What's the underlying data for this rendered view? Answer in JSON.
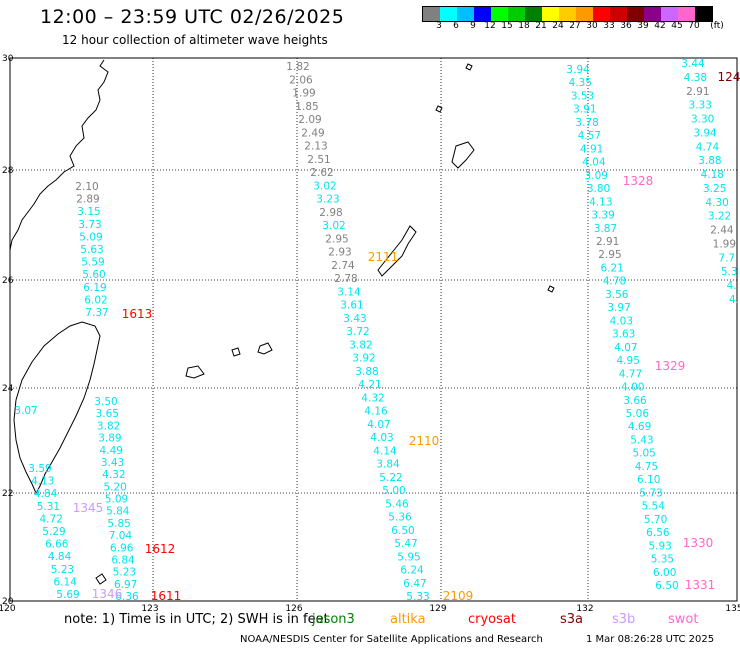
{
  "title": "12:00 – 23:59 UTC 02/26/2025",
  "subtitle": "12 hour collection of altimeter wave heights",
  "legend": {
    "unit": "(ft)",
    "colors": [
      "#808080",
      "#00ffff",
      "#00bfff",
      "#0000ff",
      "#00ff00",
      "#00cc00",
      "#008000",
      "#ffff00",
      "#ffcc00",
      "#ff9900",
      "#ff0000",
      "#cc0000",
      "#800000",
      "#8b008b",
      "#cc66ff",
      "#ff66cc",
      "#000000"
    ],
    "labels": [
      "3",
      "6",
      "9",
      "12",
      "15",
      "18",
      "21",
      "24",
      "27",
      "30",
      "33",
      "36",
      "39",
      "42",
      "45",
      "70"
    ]
  },
  "axes": {
    "lon_ticks": [
      "120",
      "123",
      "126",
      "129",
      "132",
      "135"
    ],
    "lat_ticks": [
      "30",
      "28",
      "26",
      "24",
      "22",
      "20"
    ]
  },
  "tracks": [
    {
      "name": "track-1",
      "values": [
        "1.82",
        "2.06",
        "1.99",
        "1.85",
        "2.09",
        "2.49",
        "2.13",
        "2.51",
        "2.62",
        "3.02",
        "3.23",
        "2.98",
        "3.02",
        "2.95",
        "2.93",
        "2.74",
        "2.78",
        "3.14",
        "3.61",
        "3.43",
        "3.72",
        "3.82",
        "3.92",
        "3.88",
        "4.21",
        "4.32",
        "4.16",
        "4.07",
        "4.03",
        "4.14",
        "3.84",
        "5.22",
        "5.00",
        "5.46",
        "5.36",
        "6.50",
        "5.47",
        "5.95",
        "6.24",
        "6.47",
        "5.33"
      ]
    },
    {
      "name": "track-2",
      "values": [
        "2.10",
        "2.89",
        "3.15",
        "3.73",
        "5.09",
        "5.63",
        "5.59",
        "5.60",
        "6.19",
        "6.02",
        "7.37"
      ]
    },
    {
      "name": "track-3",
      "values": [
        "3.07"
      ]
    },
    {
      "name": "track-4",
      "values": [
        "3.50",
        "3.65",
        "3.82",
        "3.89",
        "4.49",
        "3.43",
        "4.32",
        "5.20",
        "5.09",
        "5.84",
        "5.85",
        "7.04",
        "6.96",
        "6.84",
        "5.23",
        "6.97",
        "6.36"
      ]
    },
    {
      "name": "track-5",
      "values": [
        "3.59",
        "4.13",
        "4.84",
        "5.31",
        "4.72",
        "5.29",
        "6.66",
        "4.84",
        "5.23",
        "6.14",
        "5.69"
      ]
    },
    {
      "name": "track-6",
      "values": [
        "3.94",
        "4.35",
        "3.53",
        "3.91",
        "3.78",
        "4.57",
        "4.91",
        "4.04",
        "3.09",
        "3.80",
        "4.13",
        "3.39",
        "3.87",
        "2.91",
        "2.95",
        "6.21",
        "4.78",
        "3.56",
        "3.97",
        "4.03",
        "3.63",
        "4.07",
        "4.95",
        "4.77",
        "4.00",
        "3.66",
        "5.06",
        "4.69",
        "5.43",
        "5.05",
        "4.75",
        "6.10",
        "5.73",
        "5.54",
        "5.70",
        "6.56",
        "5.93",
        "5.35",
        "6.00",
        "6.50"
      ]
    },
    {
      "name": "track-7",
      "values": [
        "3.44",
        "4.38",
        "2.91",
        "3.33",
        "3.30",
        "3.94",
        "4.74",
        "3.88",
        "4.18",
        "3.25",
        "4.30",
        "3.22",
        "2.44",
        "1.99",
        "7.7",
        "5.3",
        "4.",
        "4."
      ]
    }
  ],
  "pass_labels": [
    {
      "text": "1613",
      "color": "#ff0000"
    },
    {
      "text": "2111",
      "color": "#ff9900"
    },
    {
      "text": "2110",
      "color": "#ff9900"
    },
    {
      "text": "1345",
      "color": "#cc99ff"
    },
    {
      "text": "1612",
      "color": "#ff0000"
    },
    {
      "text": "1611",
      "color": "#ff0000"
    },
    {
      "text": "1346",
      "color": "#cc99ff"
    },
    {
      "text": "2109",
      "color": "#ff9900"
    },
    {
      "text": "1328",
      "color": "#ff66cc"
    },
    {
      "text": "1329",
      "color": "#ff66cc"
    },
    {
      "text": "1330",
      "color": "#ff66cc"
    },
    {
      "text": "1331",
      "color": "#ff66cc"
    },
    {
      "text": "124",
      "color": "#800000"
    }
  ],
  "satellites_note": {
    "prefix": "note:  1) Time is in UTC; 2) SWH is in feet",
    "satellites": [
      {
        "name": "jason3",
        "color": "#008000"
      },
      {
        "name": "altika",
        "color": "#ff9900"
      },
      {
        "name": "cryosat",
        "color": "#ff0000"
      },
      {
        "name": "s3a",
        "color": "#800000"
      },
      {
        "name": "s3b",
        "color": "#cc99ff"
      },
      {
        "name": "swot",
        "color": "#ff66cc"
      }
    ]
  },
  "footer": {
    "credit": "NOAA/NESDIS Center for Satellite Applications and Research",
    "date": "1 Mar 08:26:28 UTC 2025"
  }
}
